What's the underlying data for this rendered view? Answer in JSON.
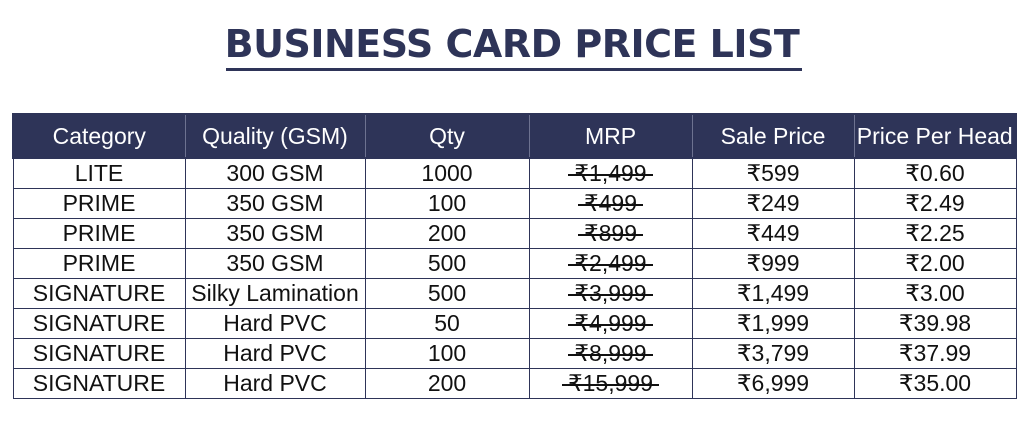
{
  "page": {
    "title": "BUSINESS CARD PRICE LIST"
  },
  "colors": {
    "header_bg": "#2e3458",
    "header_text": "#ffffff",
    "title": "#2e3458",
    "border": "#2e3458"
  },
  "table": {
    "columns": [
      "Category",
      "Quality (GSM)",
      "Qty",
      "MRP",
      "Sale Price",
      "Price Per Head"
    ],
    "rows": [
      {
        "category": "LITE",
        "quality": "300 GSM",
        "qty": "1000",
        "mrp": "₹1,499",
        "sale": "₹599",
        "per_head": "₹0.60"
      },
      {
        "category": "PRIME",
        "quality": "350 GSM",
        "qty": "100",
        "mrp": "₹499",
        "sale": "₹249",
        "per_head": "₹2.49"
      },
      {
        "category": "PRIME",
        "quality": "350 GSM",
        "qty": "200",
        "mrp": "₹899",
        "sale": "₹449",
        "per_head": "₹2.25"
      },
      {
        "category": "PRIME",
        "quality": "350 GSM",
        "qty": "500",
        "mrp": "₹2,499",
        "sale": "₹999",
        "per_head": "₹2.00"
      },
      {
        "category": "SIGNATURE",
        "quality": "Silky Lamination",
        "qty": "500",
        "mrp": "₹3,999",
        "sale": "₹1,499",
        "per_head": "₹3.00"
      },
      {
        "category": "SIGNATURE",
        "quality": "Hard PVC",
        "qty": "50",
        "mrp": "₹4,999",
        "sale": "₹1,999",
        "per_head": "₹39.98"
      },
      {
        "category": "SIGNATURE",
        "quality": "Hard PVC",
        "qty": "100",
        "mrp": "₹8,999",
        "sale": "₹3,799",
        "per_head": "₹37.99"
      },
      {
        "category": "SIGNATURE",
        "quality": "Hard PVC",
        "qty": "200",
        "mrp": "₹15,999",
        "sale": "₹6,999",
        "per_head": "₹35.00"
      }
    ]
  }
}
